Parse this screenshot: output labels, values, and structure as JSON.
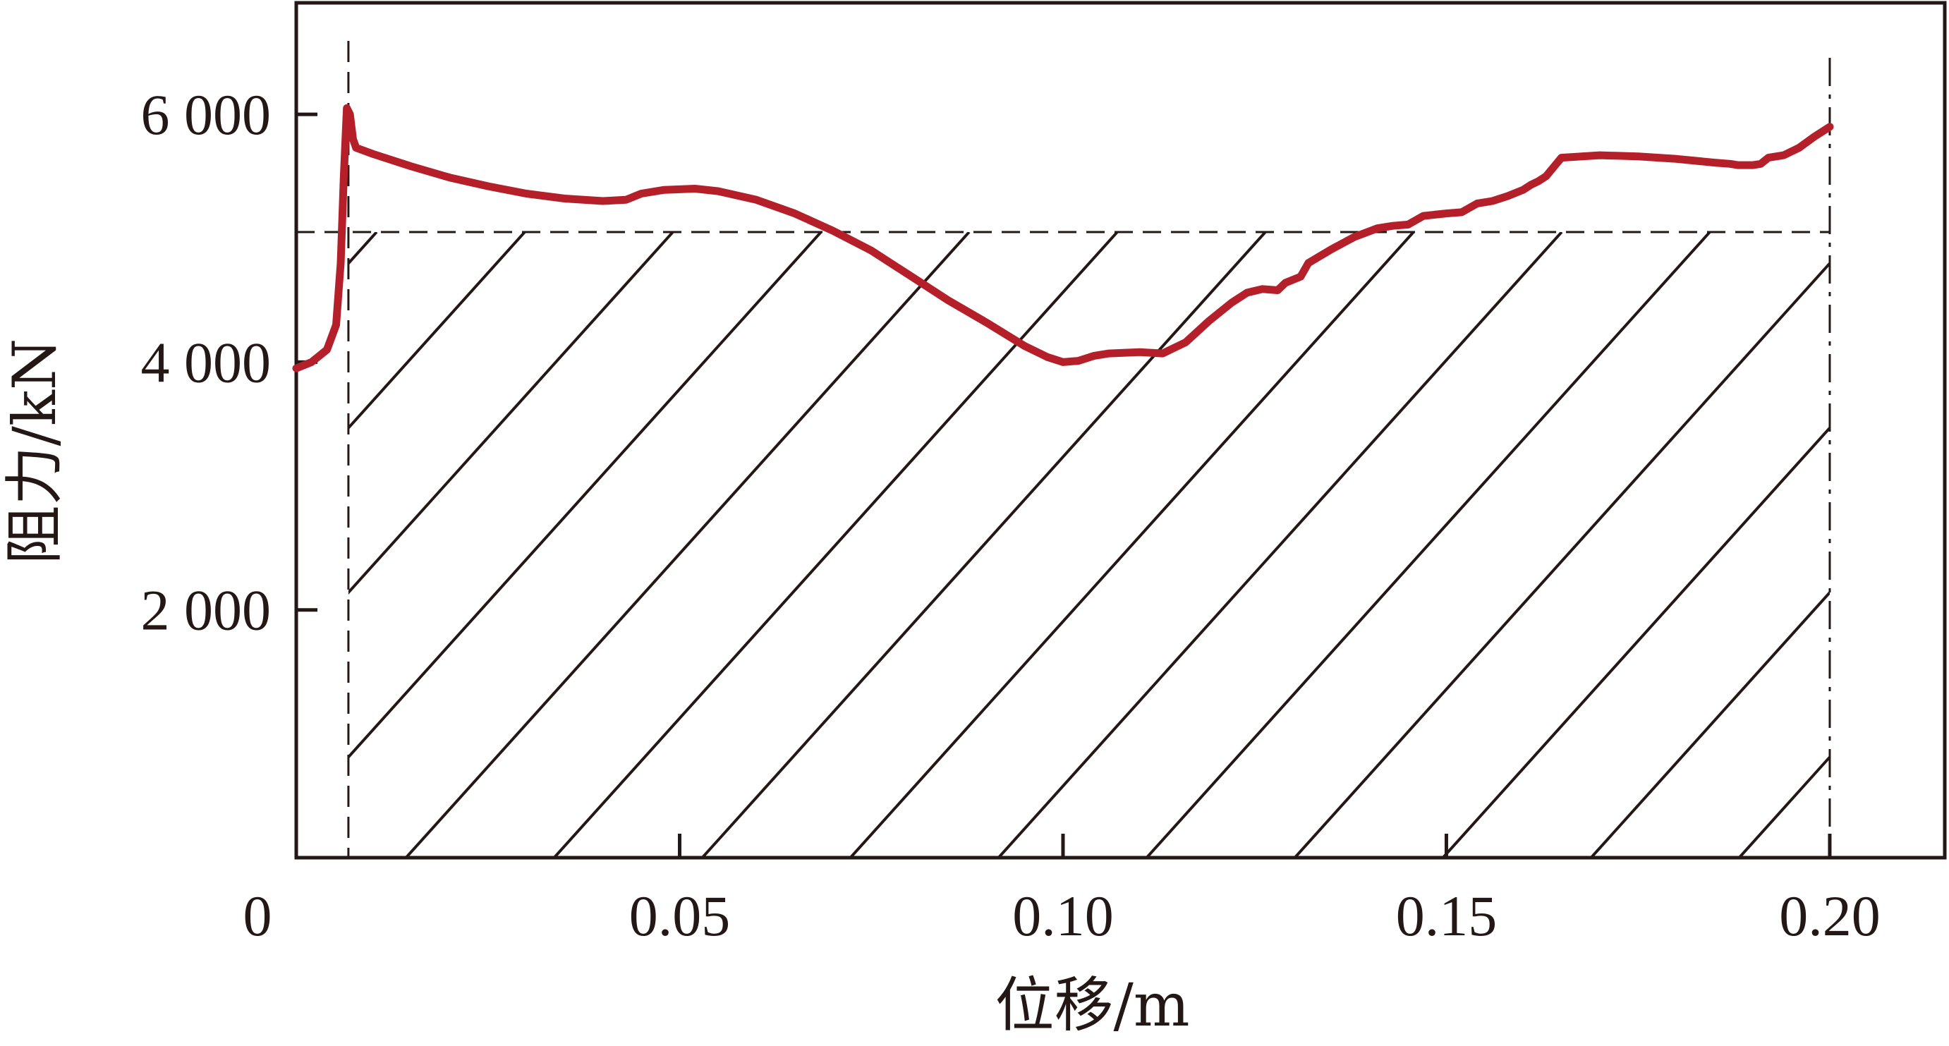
{
  "chart_data": {
    "type": "line",
    "title": "",
    "xlabel": "位移/m",
    "ylabel": "阻力/kN",
    "xlim": [
      0,
      0.215
    ],
    "ylim": [
      0,
      6900
    ],
    "x_ticks": [
      {
        "value": 0,
        "label": "0"
      },
      {
        "value": 0.05,
        "label": "0.05"
      },
      {
        "value": 0.1,
        "label": "0.10"
      },
      {
        "value": 0.15,
        "label": "0.15"
      },
      {
        "value": 0.2,
        "label": "0.20"
      }
    ],
    "y_ticks": [
      {
        "value": 2000,
        "label": "2 000"
      },
      {
        "value": 4000,
        "label": "4 000"
      },
      {
        "value": 6000,
        "label": "6 000"
      }
    ],
    "grid": false,
    "line_color": "#b51f29",
    "reference_lines": {
      "horizontal_dashed_y": 5050,
      "vertical_dashed_x": 0.0068,
      "vertical_dashdot_x": 0.2
    },
    "hatched_region": {
      "x_start": 0.0068,
      "x_end": 0.2,
      "y_top": 5050
    },
    "series": [
      {
        "x": [
          0.0,
          0.002,
          0.004,
          0.0052,
          0.0058,
          0.0062,
          0.0066,
          0.007,
          0.0074,
          0.0078,
          0.01,
          0.015,
          0.02,
          0.025,
          0.03,
          0.035,
          0.04,
          0.043,
          0.045,
          0.048,
          0.052,
          0.055,
          0.06,
          0.065,
          0.07,
          0.075,
          0.08,
          0.085,
          0.09,
          0.095,
          0.098,
          0.1,
          0.102,
          0.104,
          0.106,
          0.11,
          0.113,
          0.116,
          0.119,
          0.122,
          0.124,
          0.126,
          0.128,
          0.129,
          0.131,
          0.132,
          0.135,
          0.138,
          0.141,
          0.143,
          0.145,
          0.147,
          0.15,
          0.152,
          0.154,
          0.156,
          0.158,
          0.16,
          0.161,
          0.162,
          0.163,
          0.165,
          0.17,
          0.175,
          0.18,
          0.185,
          0.187,
          0.188,
          0.19,
          0.191,
          0.192,
          0.194,
          0.196,
          0.198,
          0.2
        ],
        "y": [
          3950,
          4000,
          4100,
          4300,
          4800,
          5500,
          6050,
          6000,
          5800,
          5730,
          5680,
          5580,
          5490,
          5420,
          5360,
          5320,
          5300,
          5310,
          5360,
          5390,
          5400,
          5380,
          5310,
          5200,
          5060,
          4900,
          4700,
          4500,
          4320,
          4130,
          4040,
          4000,
          4010,
          4050,
          4070,
          4080,
          4070,
          4160,
          4330,
          4480,
          4560,
          4590,
          4580,
          4640,
          4690,
          4800,
          4910,
          5010,
          5080,
          5100,
          5110,
          5180,
          5200,
          5210,
          5280,
          5300,
          5340,
          5390,
          5430,
          5460,
          5500,
          5650,
          5670,
          5660,
          5640,
          5610,
          5600,
          5590,
          5590,
          5600,
          5650,
          5670,
          5730,
          5820,
          5900
        ]
      }
    ]
  }
}
